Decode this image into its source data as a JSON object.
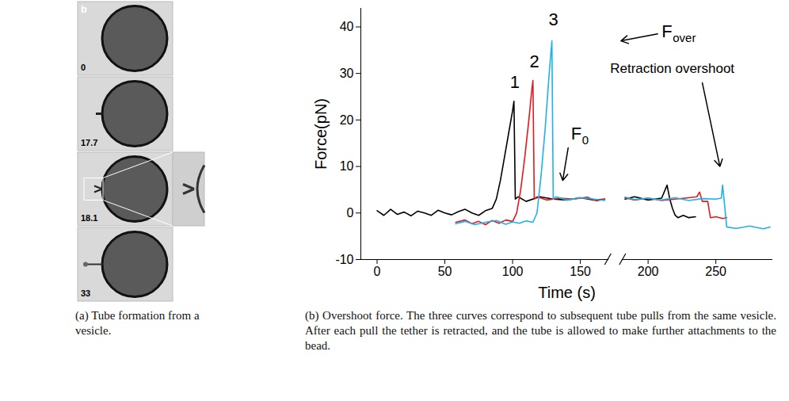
{
  "panel_a": {
    "letter": "b",
    "frames": [
      {
        "time": "0"
      },
      {
        "time": "17.7"
      },
      {
        "time": "18.1"
      },
      {
        "time": "33"
      }
    ]
  },
  "chart_data": {
    "type": "line",
    "x_label": "Time (s)",
    "y_label": "Force(pN)",
    "xlim": [
      -12,
      292
    ],
    "ylim": [
      -10,
      44
    ],
    "xticks": [
      0,
      50,
      100,
      150,
      200,
      250
    ],
    "yticks": [
      -10,
      0,
      10,
      20,
      30,
      40
    ],
    "grid": false,
    "x_break": [
      170,
      182
    ],
    "series": [
      {
        "color": "#000000",
        "x": [
          0,
          5,
          10,
          15,
          20,
          25,
          30,
          35,
          40,
          45,
          50,
          55,
          60,
          65,
          70,
          75,
          80,
          85,
          88,
          91,
          94,
          97,
          100,
          101,
          102,
          104,
          110,
          120,
          130,
          140,
          150,
          160,
          168,
          175,
          183,
          190,
          200,
          210,
          214,
          216,
          218,
          220,
          222,
          226,
          230,
          235
        ],
        "values": [
          0.5,
          -0.5,
          0.8,
          -0.3,
          0.2,
          -0.6,
          0.4,
          0,
          -0.5,
          0.6,
          0,
          -0.4,
          0.3,
          0.8,
          0,
          -0.5,
          0.5,
          1,
          3,
          7,
          12,
          17,
          22,
          24,
          3,
          3.5,
          2.5,
          3.5,
          3,
          2.8,
          3.3,
          2.8,
          3,
          null,
          3,
          3.5,
          2.8,
          3.2,
          6,
          3,
          1,
          -0.5,
          -1,
          -0.5,
          -1,
          -0.8
        ]
      },
      {
        "color": "#e31a1c",
        "x": [
          58,
          65,
          70,
          75,
          80,
          85,
          90,
          95,
          100,
          103,
          106,
          109,
          112,
          114,
          115,
          116,
          118,
          125,
          135,
          145,
          155,
          162,
          168,
          175,
          183,
          190,
          200,
          210,
          220,
          230,
          236,
          238,
          240,
          244,
          246,
          250,
          255,
          258
        ],
        "values": [
          -2,
          -1.5,
          -2.3,
          -1.8,
          -2.5,
          -1.6,
          -2.2,
          -1.5,
          -1.8,
          0,
          5,
          12,
          20,
          26,
          28.5,
          3,
          3.5,
          2.8,
          3.2,
          3,
          3.4,
          2.6,
          3,
          null,
          3.3,
          2.8,
          3.2,
          2.7,
          3,
          3.3,
          3.5,
          4.5,
          2.5,
          2.5,
          -1,
          -0.8,
          -1.2,
          -1
        ]
      },
      {
        "color": "#1fb2e8",
        "x": [
          58,
          65,
          72,
          80,
          88,
          95,
          100,
          105,
          110,
          115,
          118,
          121,
          124,
          127,
          129,
          130,
          132,
          140,
          150,
          160,
          168,
          175,
          183,
          190,
          200,
          210,
          220,
          230,
          240,
          250,
          254,
          255,
          256,
          258,
          265,
          275,
          285,
          290
        ],
        "values": [
          -2.3,
          -1.8,
          -2.5,
          -2,
          -1.6,
          -2.4,
          -1.9,
          -2.2,
          -1.7,
          -2,
          0,
          8,
          18,
          30,
          37,
          3,
          3.5,
          2.8,
          3.3,
          3,
          2.7,
          null,
          3.4,
          2.9,
          3.2,
          2.8,
          3.3,
          2.7,
          3.1,
          3,
          3.2,
          6,
          3,
          -3,
          -3.3,
          -2.8,
          -3.4,
          -3
        ]
      }
    ],
    "annotations": [
      {
        "text": "1",
        "x": 98,
        "y": 28
      },
      {
        "text": "2",
        "x": 112.5,
        "y": 32.5
      },
      {
        "text": "3",
        "x": 126.5,
        "y": 41.5
      },
      {
        "text": "F",
        "subscript": "over",
        "x": 210,
        "y": 39,
        "arrow": [
          [
            207,
            38.5
          ],
          [
            180,
            37
          ]
        ]
      },
      {
        "text": "F",
        "subscript": "0",
        "x": 143,
        "y": 17,
        "arrow": [
          [
            141,
            14
          ],
          [
            137,
            7
          ]
        ]
      },
      {
        "text": "Retraction overshoot",
        "x": 172,
        "y": 31,
        "arrow": [
          [
            240,
            28
          ],
          [
            253,
            10
          ]
        ]
      }
    ]
  },
  "captions": {
    "a": "(a) Tube formation from a vesicle.",
    "b": "(b) Overshoot force. The three curves correspond to subsequent tube pulls from the same vesicle. After each pull the tether is retracted, and the tube is allowed to make further attachments to the bead."
  }
}
